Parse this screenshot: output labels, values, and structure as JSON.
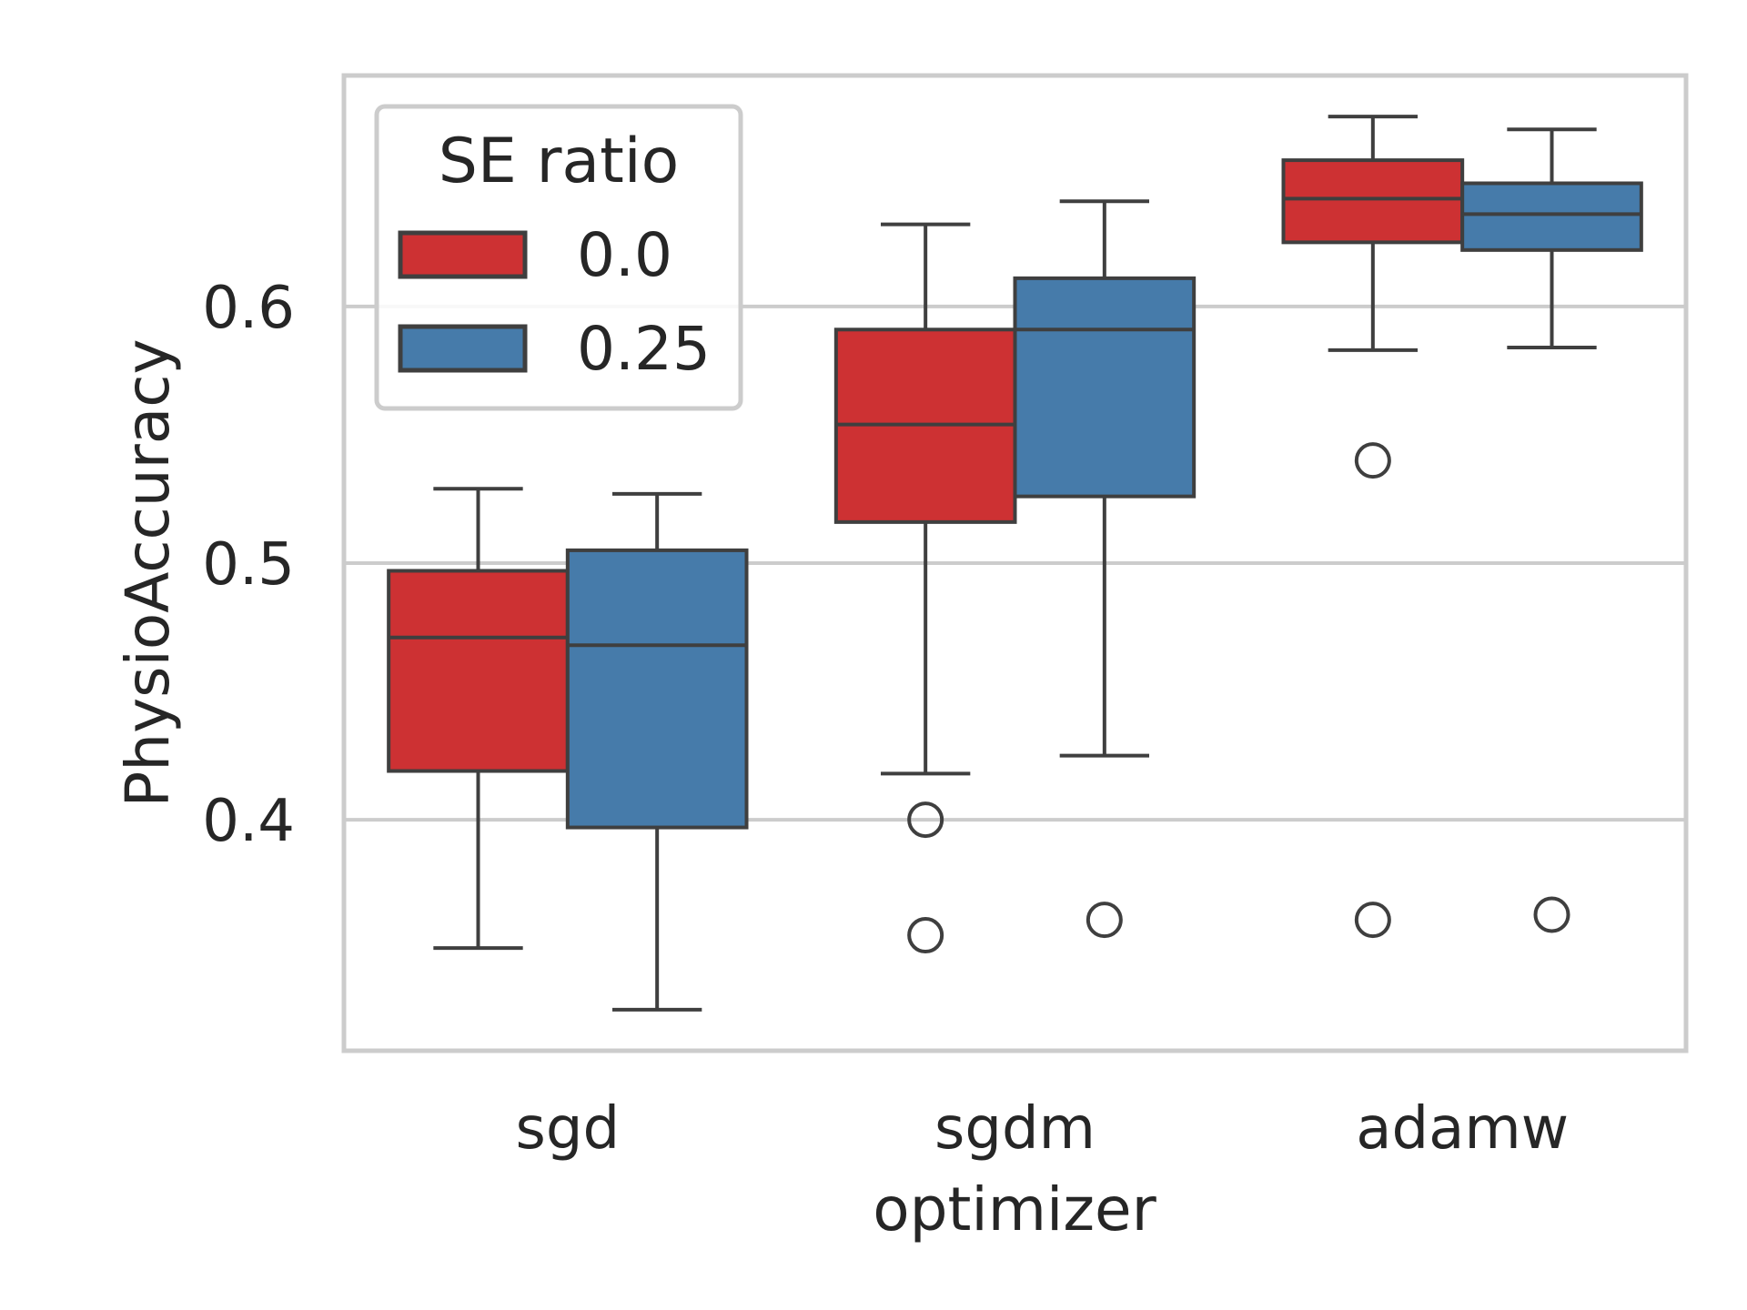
{
  "chart_data": {
    "type": "box",
    "title": "",
    "xlabel": "optimizer",
    "ylabel": "PhysioAccuracy",
    "categories": [
      "sgd",
      "sgdm",
      "adamw"
    ],
    "ylim": [
      0.31,
      0.69
    ],
    "yticks": [
      0.4,
      0.5,
      0.6
    ],
    "ytick_labels": [
      "0.4",
      "0.5",
      "0.6"
    ],
    "grid": "horizontal",
    "legend": {
      "title": "SE ratio",
      "placement": "top-left"
    },
    "series": [
      {
        "name": "0.0",
        "color": "#cd3133",
        "boxes": [
          {
            "category": "sgd",
            "whisker_low": 0.35,
            "q1": 0.419,
            "median": 0.471,
            "q3": 0.497,
            "whisker_high": 0.529,
            "outliers": []
          },
          {
            "category": "sgdm",
            "whisker_low": 0.418,
            "q1": 0.516,
            "median": 0.554,
            "q3": 0.591,
            "whisker_high": 0.632,
            "outliers": [
              0.4,
              0.355
            ]
          },
          {
            "category": "adamw",
            "whisker_low": 0.583,
            "q1": 0.625,
            "median": 0.642,
            "q3": 0.657,
            "whisker_high": 0.674,
            "outliers": [
              0.54,
              0.361
            ]
          }
        ]
      },
      {
        "name": "0.25",
        "color": "#467baa",
        "boxes": [
          {
            "category": "sgd",
            "whisker_low": 0.326,
            "q1": 0.397,
            "median": 0.468,
            "q3": 0.505,
            "whisker_high": 0.527,
            "outliers": []
          },
          {
            "category": "sgdm",
            "whisker_low": 0.425,
            "q1": 0.526,
            "median": 0.591,
            "q3": 0.611,
            "whisker_high": 0.641,
            "outliers": [
              0.361
            ]
          },
          {
            "category": "adamw",
            "whisker_low": 0.584,
            "q1": 0.622,
            "median": 0.636,
            "q3": 0.648,
            "whisker_high": 0.669,
            "outliers": [
              0.363
            ]
          }
        ]
      }
    ]
  }
}
